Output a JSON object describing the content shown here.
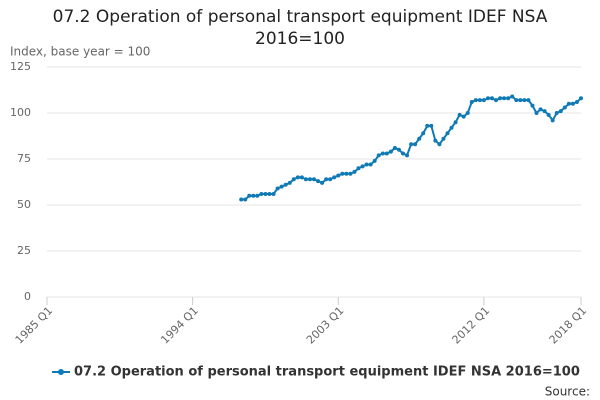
{
  "chart_data": {
    "type": "line",
    "title": "07.2 Operation of personal transport equipment IDEF NSA 2016=100",
    "y_label": "Index, base year = 100",
    "source": "Source:",
    "categories": [
      "1985 Q1",
      null,
      null,
      null,
      null,
      null,
      null,
      null,
      null,
      null,
      null,
      null,
      null,
      null,
      null,
      null,
      null,
      null,
      null,
      null,
      null,
      null,
      null,
      null,
      null,
      null,
      null,
      null,
      null,
      null,
      null,
      null,
      null,
      null,
      null,
      null,
      "1994 Q1",
      null,
      null,
      null,
      null,
      null,
      null,
      null,
      null,
      null,
      null,
      null,
      null,
      null,
      null,
      null,
      null,
      null,
      null,
      null,
      null,
      null,
      null,
      null,
      null,
      null,
      null,
      null,
      null,
      null,
      null,
      null,
      null,
      null,
      null,
      null,
      "2003 Q1",
      null,
      null,
      null,
      null,
      null,
      null,
      null,
      null,
      null,
      null,
      null,
      null,
      null,
      null,
      null,
      null,
      null,
      null,
      null,
      null,
      null,
      null,
      null,
      null,
      null,
      null,
      null,
      null,
      null,
      null,
      null,
      null,
      null,
      null,
      null,
      "2012 Q1",
      null,
      null,
      null,
      null,
      null,
      null,
      null,
      null,
      null,
      null,
      null,
      null,
      null,
      null,
      null,
      null,
      null,
      null,
      null,
      null,
      null,
      null,
      null,
      "2018 Q1"
    ],
    "series": [
      {
        "name": "07.2 Operation of personal transport equipment IDEF NSA 2016=100",
        "color": "#0f7ab5",
        "values": [
          null,
          null,
          null,
          null,
          null,
          null,
          null,
          null,
          null,
          null,
          null,
          null,
          null,
          null,
          null,
          null,
          null,
          null,
          null,
          null,
          null,
          null,
          null,
          null,
          null,
          null,
          null,
          null,
          null,
          null,
          null,
          null,
          null,
          null,
          null,
          null,
          null,
          null,
          null,
          null,
          null,
          null,
          null,
          null,
          null,
          null,
          null,
          null,
          53,
          53,
          55,
          55,
          55,
          56,
          56,
          56,
          56,
          59,
          60,
          61,
          62,
          64,
          65,
          65,
          64,
          64,
          64,
          63,
          62,
          64,
          64,
          65,
          66,
          67,
          67,
          67,
          68,
          70,
          71,
          72,
          72,
          74,
          77,
          78,
          78,
          79,
          81,
          80,
          78,
          77,
          83,
          83,
          86,
          89,
          93,
          93,
          85,
          83,
          86,
          89,
          92,
          95,
          99,
          98,
          100,
          106,
          107,
          107,
          107,
          108,
          108,
          107,
          108,
          108,
          108,
          109,
          107,
          107,
          107,
          107,
          104,
          100,
          102,
          101,
          99,
          96,
          100,
          101,
          103,
          105,
          105,
          106,
          108
        ]
      }
    ],
    "ylim": [
      0,
      125
    ],
    "yticks": [
      0,
      25,
      50,
      75,
      100,
      125
    ],
    "grid": true,
    "legend": "bottom"
  }
}
